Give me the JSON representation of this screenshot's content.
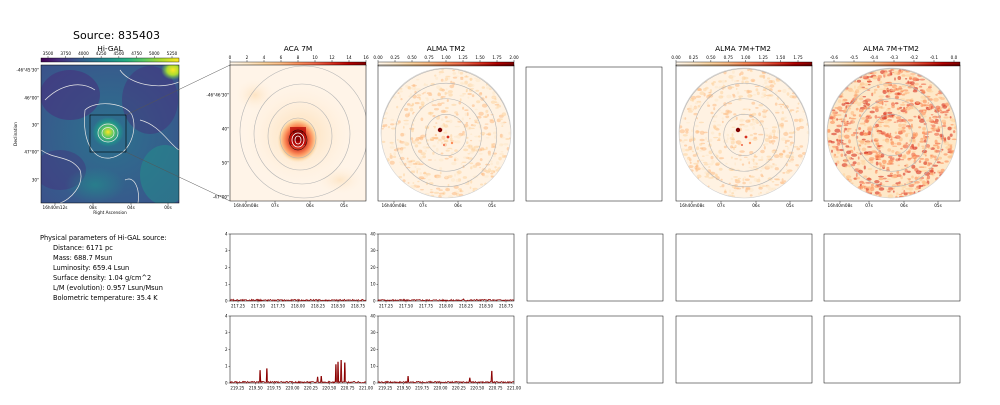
{
  "page": {
    "title": "Source: 835403"
  },
  "colors": {
    "viridis": [
      "#440154",
      "#472d7b",
      "#3b528b",
      "#2c728e",
      "#21918c",
      "#28ae80",
      "#5ec962",
      "#addc30",
      "#fde725"
    ],
    "orrd": [
      "#fff7ec",
      "#fee8c8",
      "#fdd49e",
      "#fdbb84",
      "#fc8d59",
      "#ef6548",
      "#d7301f",
      "#b30000",
      "#7f0000"
    ],
    "spectrum_line": "#8b0000",
    "contour": "#b4b4b4"
  },
  "params": {
    "heading": "Physical parameters of Hi-GAL source:",
    "items": [
      "Distance: 6171 pc",
      "Mass: 688.7 Msun",
      "Luminosity: 659.4 Lsun",
      "Surface density: 1.04 g/cm^2",
      "L/M (evolution): 0.957 Lsun/Msun",
      "Bolometric temperature: 35.4 K"
    ]
  },
  "chart_data": [
    {
      "type": "heatmap",
      "title": "Hi-GAL",
      "colormap": "viridis",
      "colorbar_ticks": [
        "3500",
        "3750",
        "4000",
        "4250",
        "4500",
        "4750",
        "5000",
        "5250"
      ],
      "xlabel": "Right Ascension",
      "ylabel": "Declination",
      "x_ticks": [
        "16h40m12s",
        "08s",
        "04s",
        "00s"
      ],
      "y_ticks": [
        "-46°45'30\"",
        "46°00\"",
        "30\"",
        "47°00\"",
        "30\""
      ]
    },
    {
      "type": "heatmap",
      "title": "ACA 7M",
      "colormap": "OrRd",
      "colorbar_ticks": [
        "0",
        "2",
        "4",
        "6",
        "8",
        "10",
        "12",
        "14",
        "16"
      ],
      "x_ticks": [
        "16h40m08s",
        "07s",
        "06s",
        "05s"
      ],
      "y_ticks": [
        "-46°46'30\"",
        "40\"",
        "50\"",
        "-47°00\""
      ]
    },
    {
      "type": "heatmap",
      "title": "ALMA TM2",
      "colormap": "OrRd",
      "colorbar_ticks": [
        "0.00",
        "0.25",
        "0.50",
        "0.75",
        "1.00",
        "1.25",
        "1.50",
        "1.75",
        "2.00"
      ],
      "x_ticks": [
        "16h40m08s",
        "07s",
        "06s",
        "05s"
      ]
    },
    {
      "type": "heatmap",
      "title": "ALMA 7M+TM2",
      "colormap": "OrRd",
      "colorbar_ticks": [
        "0.00",
        "0.25",
        "0.50",
        "0.75",
        "1.00",
        "1.25",
        "1.50",
        "1.75"
      ],
      "x_ticks": [
        "16h40m08s",
        "07s",
        "06s",
        "05s"
      ]
    },
    {
      "type": "heatmap",
      "title": "ALMA 7M+TM2",
      "colormap": "OrRd",
      "colorbar_ticks": [
        "-0.6",
        "-0.5",
        "-0.4",
        "-0.3",
        "-0.2",
        "-0.1",
        "0.0"
      ],
      "x_ticks": [
        "16h40m08s",
        "07s",
        "06s",
        "05s"
      ]
    },
    {
      "type": "line",
      "ylim": [
        0,
        4
      ],
      "xlim": [
        217.15,
        218.85
      ],
      "x_ticks": [
        "217.25",
        "217.50",
        "217.75",
        "218.00",
        "218.25",
        "218.50",
        "218.75"
      ],
      "y_ticks": [
        "0",
        "1",
        "2",
        "3",
        "4"
      ],
      "baseline": 0.05,
      "peaks": []
    },
    {
      "type": "line",
      "ylim": [
        0,
        40
      ],
      "xlim": [
        217.15,
        218.85
      ],
      "x_ticks": [
        "217.25",
        "217.50",
        "217.75",
        "218.00",
        "218.25",
        "218.50",
        "218.75"
      ],
      "y_ticks": [
        "0",
        "10",
        "20",
        "30",
        "40"
      ],
      "baseline": 0.5,
      "peaks": [
        {
          "x": 218.22,
          "y": 1.2
        }
      ]
    },
    {
      "type": "line",
      "ylim": [
        0,
        4
      ],
      "xlim": [
        219.15,
        221.0
      ],
      "x_ticks": [
        "219.25",
        "219.50",
        "219.75",
        "220.00",
        "220.25",
        "220.50",
        "220.75",
        "221.00"
      ],
      "y_ticks": [
        "0",
        "1",
        "2",
        "3",
        "4"
      ],
      "baseline": 0.05,
      "peaks": [
        {
          "x": 219.56,
          "y": 0.75
        },
        {
          "x": 219.65,
          "y": 0.85
        },
        {
          "x": 220.34,
          "y": 0.35
        },
        {
          "x": 220.39,
          "y": 0.4
        },
        {
          "x": 220.59,
          "y": 1.1
        },
        {
          "x": 220.62,
          "y": 1.25
        },
        {
          "x": 220.66,
          "y": 1.35
        },
        {
          "x": 220.71,
          "y": 1.2
        }
      ]
    },
    {
      "type": "line",
      "ylim": [
        0,
        40
      ],
      "xlim": [
        219.15,
        221.0
      ],
      "x_ticks": [
        "219.25",
        "219.50",
        "219.75",
        "220.00",
        "220.25",
        "220.50",
        "220.75",
        "221.00"
      ],
      "y_ticks": [
        "0",
        "10",
        "20",
        "30",
        "40"
      ],
      "baseline": 0.5,
      "peaks": [
        {
          "x": 219.56,
          "y": 4
        },
        {
          "x": 220.4,
          "y": 3
        },
        {
          "x": 220.7,
          "y": 7
        }
      ]
    }
  ]
}
